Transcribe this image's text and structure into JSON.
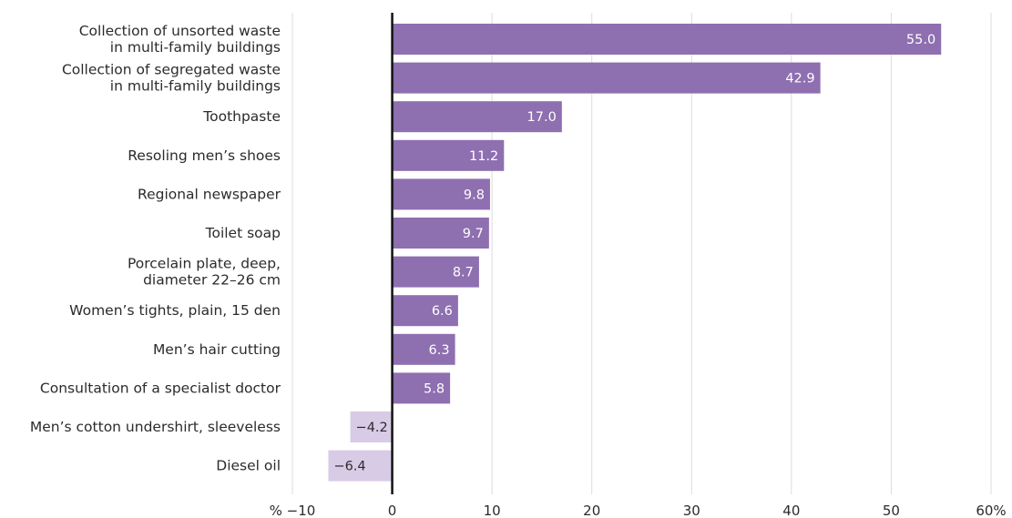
{
  "chart_data": {
    "type": "bar",
    "orientation": "horizontal",
    "title": "",
    "xlabel": "",
    "ylabel": "",
    "xlim": [
      -10,
      60
    ],
    "x_ticks": [
      -10,
      0,
      10,
      20,
      30,
      40,
      50,
      60
    ],
    "x_tick_labels": [
      "% −10",
      "0",
      "10",
      "20",
      "30",
      "40",
      "50",
      "60%"
    ],
    "grid": "vertical",
    "categories": [
      "Collection of unsorted waste in multi-family buildings",
      "Collection of segregated waste in multi-family buildings",
      "Toothpaste",
      "Resoling men’s shoes",
      "Regional newspaper",
      "Toilet soap",
      "Porcelain plate, deep, diameter 22–26 cm",
      "Women’s tights, plain, 15 den",
      "Men’s hair cutting",
      "Consultation of a specialist doctor",
      "Men’s cotton undershirt, sleeveless",
      "Diesel oil"
    ],
    "category_label_lines": [
      [
        "Collection of unsorted waste",
        "in multi-family buildings"
      ],
      [
        "Collection of segregated waste",
        "in multi-family buildings"
      ],
      [
        "Toothpaste"
      ],
      [
        "Resoling men’s shoes"
      ],
      [
        "Regional newspaper"
      ],
      [
        "Toilet soap"
      ],
      [
        "Porcelain plate, deep,",
        "diameter 22–26 cm"
      ],
      [
        "Women’s tights, plain, 15 den"
      ],
      [
        "Men’s hair cutting"
      ],
      [
        "Consultation of a specialist doctor"
      ],
      [
        "Men’s cotton undershirt, sleeveless"
      ],
      [
        "Diesel oil"
      ]
    ],
    "values": [
      55.0,
      42.9,
      17.0,
      11.2,
      9.8,
      9.7,
      8.7,
      6.6,
      6.3,
      5.8,
      -4.2,
      -6.4
    ],
    "value_labels": [
      "55.0",
      "42.9",
      "17.0",
      "11.2",
      "9.8",
      "9.7",
      "8.7",
      "6.6",
      "6.3",
      "5.8",
      "−4.2",
      "−6.4"
    ],
    "colors": {
      "positive_bar": "#8e6fb0",
      "negative_bar": "#d8cbe6",
      "positive_label": "#ffffff",
      "negative_label": "#2b2b2b",
      "zero_line": "#111111",
      "grid": "#dcdcdc"
    }
  }
}
